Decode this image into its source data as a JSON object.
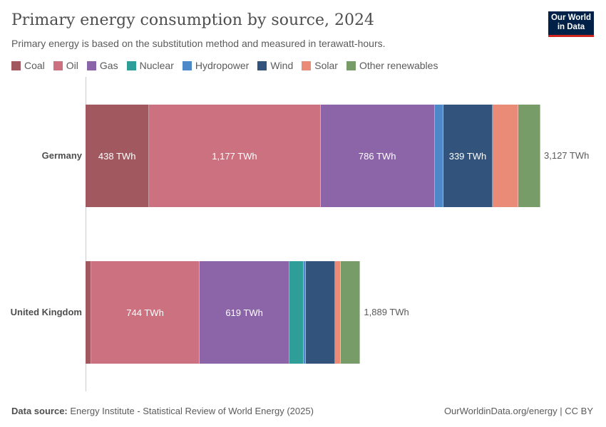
{
  "header": {
    "title": "Primary energy consumption by source, 2024",
    "subtitle": "Primary energy is based on the substitution method and measured in terawatt-hours.",
    "logo": "Our World in Data"
  },
  "chart_data": {
    "type": "bar",
    "orientation": "horizontal",
    "stacked": true,
    "unit": "TWh",
    "categories": [
      "Germany",
      "United Kingdom"
    ],
    "series": [
      {
        "name": "Coal",
        "color": "#a2585f",
        "values": [
          438,
          40
        ]
      },
      {
        "name": "Oil",
        "color": "#cc717f",
        "values": [
          1177,
          744
        ]
      },
      {
        "name": "Gas",
        "color": "#8b65a7",
        "values": [
          786,
          619
        ]
      },
      {
        "name": "Nuclear",
        "color": "#2f9d98",
        "values": [
          0,
          98
        ]
      },
      {
        "name": "Hydropower",
        "color": "#4d88c8",
        "values": [
          59,
          15
        ]
      },
      {
        "name": "Wind",
        "color": "#32547c",
        "values": [
          339,
          200
        ]
      },
      {
        "name": "Solar",
        "color": "#ea8b78",
        "values": [
          176,
          39
        ]
      },
      {
        "name": "Other renewables",
        "color": "#789c68",
        "values": [
          152,
          134
        ]
      }
    ],
    "totals": [
      "3,127 TWh",
      "1,889 TWh"
    ],
    "data_labels": [
      [
        "438 TWh",
        "1,177 TWh",
        "786 TWh",
        "",
        "",
        "339 TWh",
        "",
        ""
      ],
      [
        "",
        "744 TWh",
        "619 TWh",
        "",
        "",
        "",
        "",
        ""
      ]
    ],
    "legend_position": "top-left",
    "grid": false
  },
  "footer": {
    "source_label": "Data source:",
    "source": "Energy Institute - Statistical Review of World Energy (2025)",
    "link": "OurWorldinData.org/energy | CC BY"
  }
}
